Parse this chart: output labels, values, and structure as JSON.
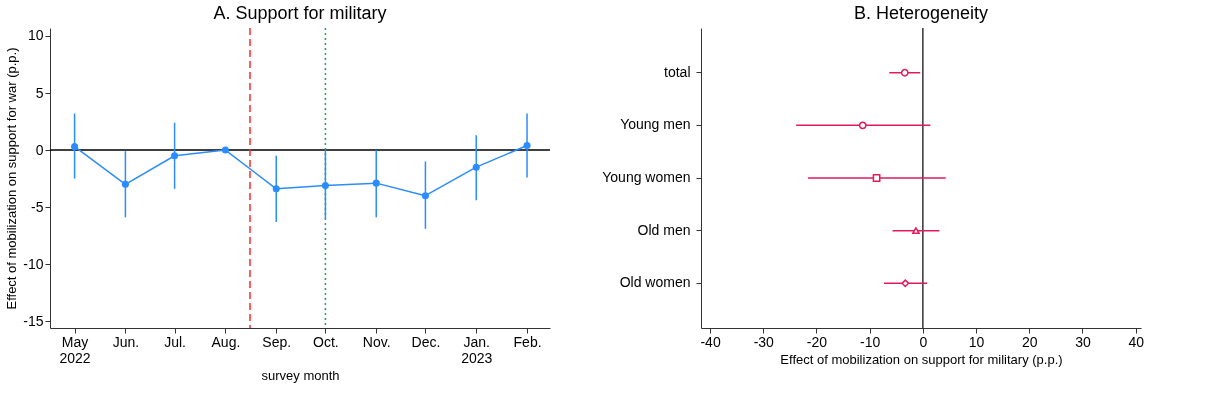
{
  "chart_data": [
    {
      "type": "line",
      "title": "A. Support for military",
      "xlabel": "survey month",
      "ylabel": "Effect of mobilization on support for war (p.p.)",
      "x": [
        "2022-05",
        "2022-06",
        "2022-07",
        "2022-08",
        "2022-09",
        "2022-10",
        "2022-11",
        "2022-12",
        "2023-01",
        "2023-02"
      ],
      "series": [
        {
          "color": "#2b8cff",
          "values": [
            0.3,
            -3.0,
            -0.5,
            0.0,
            -3.4,
            -3.1,
            -2.9,
            -4.0,
            -1.5,
            0.4
          ],
          "errors": [
            [
              -2.5,
              3.2
            ],
            [
              -5.9,
              -0.1
            ],
            [
              -3.4,
              2.4
            ],
            null,
            [
              -6.3,
              -0.5
            ],
            [
              -6.0,
              0.0
            ],
            [
              -5.9,
              0.0
            ],
            [
              -6.9,
              -1.0
            ],
            [
              -4.4,
              1.3
            ],
            [
              -2.4,
              3.2
            ]
          ]
        }
      ],
      "marker": "circle",
      "line_style": "solid",
      "grid": false,
      "xlim": [
        "2022-04-16",
        "2023-02-15"
      ],
      "ylim": [
        -15.6,
        10.7
      ],
      "xticks": [
        {
          "value": "2022-05",
          "label": "May 2022"
        },
        {
          "value": "2022-06",
          "label": "Jun."
        },
        {
          "value": "2022-07",
          "label": "Jul."
        },
        {
          "value": "2022-08",
          "label": "Aug."
        },
        {
          "value": "2022-09",
          "label": "Sep."
        },
        {
          "value": "2022-10",
          "label": "Oct."
        },
        {
          "value": "2022-11",
          "label": "Nov."
        },
        {
          "value": "2022-12",
          "label": "Dec."
        },
        {
          "value": "2023-01",
          "label": "Jan. 2023"
        },
        {
          "value": "2023-02",
          "label": "Feb."
        }
      ],
      "yticks": [
        -15,
        -10,
        -5,
        0,
        5,
        10
      ],
      "ref_lines": [
        {
          "axis": "y",
          "value": 0,
          "color": "#000000",
          "line_style": "solid"
        },
        {
          "axis": "x",
          "value": "2022-08-16",
          "color": "#ff2a2a",
          "line_style": "dashed"
        },
        {
          "axis": "x",
          "value": "2022-10",
          "color": "#1aa860",
          "line_style": "dotted"
        }
      ]
    },
    {
      "type": "scatter",
      "title": "B. Heterogeneity",
      "xlabel": "Effect of mobilization on support for military (p.p.)",
      "orientation": "horizontal",
      "categories": [
        "total",
        "Young men",
        "Young women",
        "Old men",
        "Old women"
      ],
      "series": [
        {
          "color": "#e0195f",
          "marker": "circle",
          "values": [
            -3.4,
            null,
            null,
            null,
            null
          ],
          "errors": [
            [
              -6.3,
              -0.5
            ],
            null,
            null,
            null,
            null
          ]
        },
        {
          "color": "#e0195f",
          "marker": "circle",
          "values": [
            null,
            -11.3,
            null,
            null,
            null
          ],
          "errors": [
            null,
            [
              -23.8,
              1.4
            ],
            null,
            null,
            null
          ]
        },
        {
          "color": "#e0195f",
          "marker": "square",
          "values": [
            null,
            null,
            -8.7,
            null,
            null
          ],
          "errors": [
            null,
            null,
            [
              -21.6,
              4.3
            ],
            null,
            null
          ]
        },
        {
          "color": "#e0195f",
          "marker": "triangle",
          "values": [
            null,
            null,
            null,
            -1.3,
            null
          ],
          "errors": [
            null,
            null,
            null,
            [
              -5.7,
              3.1
            ],
            null
          ]
        },
        {
          "color": "#e0195f",
          "marker": "diamond",
          "values": [
            null,
            null,
            null,
            null,
            -3.3
          ],
          "errors": [
            null,
            null,
            null,
            null,
            [
              -7.3,
              0.8
            ]
          ]
        }
      ],
      "grid": false,
      "xlim": [
        -41.7,
        41
      ],
      "xticks": [
        -40,
        -30,
        -20,
        -10,
        0,
        10,
        20,
        30,
        40
      ],
      "ref_lines": [
        {
          "axis": "x",
          "value": 0,
          "color": "#333333",
          "line_style": "solid"
        }
      ]
    }
  ]
}
